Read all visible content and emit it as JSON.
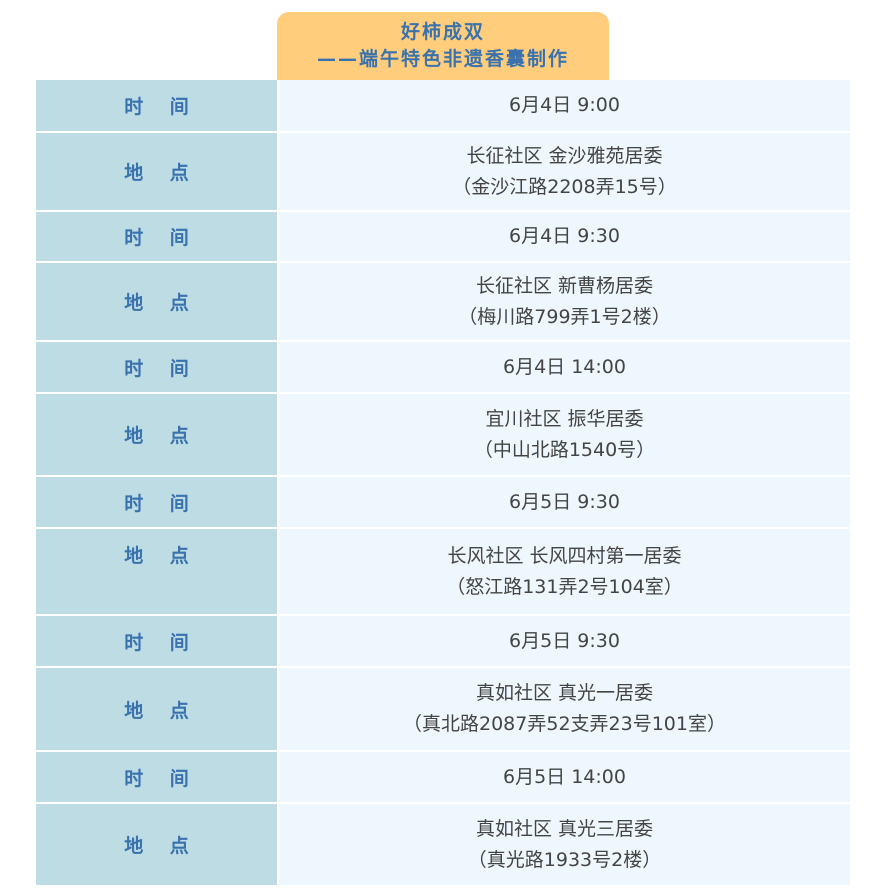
{
  "header": {
    "title": "好柿成双",
    "subtitle": "——端午特色非遗香囊制作"
  },
  "labels": {
    "time": "时 间",
    "place": "地 点"
  },
  "colors": {
    "header_bg": "#FFCD7C",
    "label_bg": "#BDDCE3",
    "value_bg": "#EEF7FD",
    "label_text": "#3A72AE"
  },
  "rows": [
    {
      "type": "time",
      "lines": [
        "6月4日 9:00"
      ]
    },
    {
      "type": "place",
      "lines": [
        "长征社区 金沙雅苑居委",
        "（金沙江路2208弄15号）"
      ]
    },
    {
      "type": "time",
      "lines": [
        "6月4日 9:30"
      ]
    },
    {
      "type": "place",
      "lines": [
        "长征社区 新曹杨居委",
        "（梅川路799弄1号2楼）"
      ]
    },
    {
      "type": "time",
      "lines": [
        "6月4日 14:00"
      ]
    },
    {
      "type": "place",
      "lines": [
        "宜川社区 振华居委",
        "（中山北路1540号）"
      ]
    },
    {
      "type": "time",
      "lines": [
        "6月5日 9:30"
      ]
    },
    {
      "type": "place",
      "lines": [
        "长风社区 长风四村第一居委",
        "（怒江路131弄2号104室）"
      ]
    },
    {
      "type": "time",
      "lines": [
        "6月5日 9:30"
      ]
    },
    {
      "type": "place",
      "lines": [
        "真如社区 真光一居委",
        "（真北路2087弄52支弄23号101室）"
      ]
    },
    {
      "type": "time",
      "lines": [
        "6月5日 14:00"
      ]
    },
    {
      "type": "place",
      "lines": [
        "真如社区 真光三居委",
        "（真光路1933号2楼）"
      ]
    }
  ]
}
